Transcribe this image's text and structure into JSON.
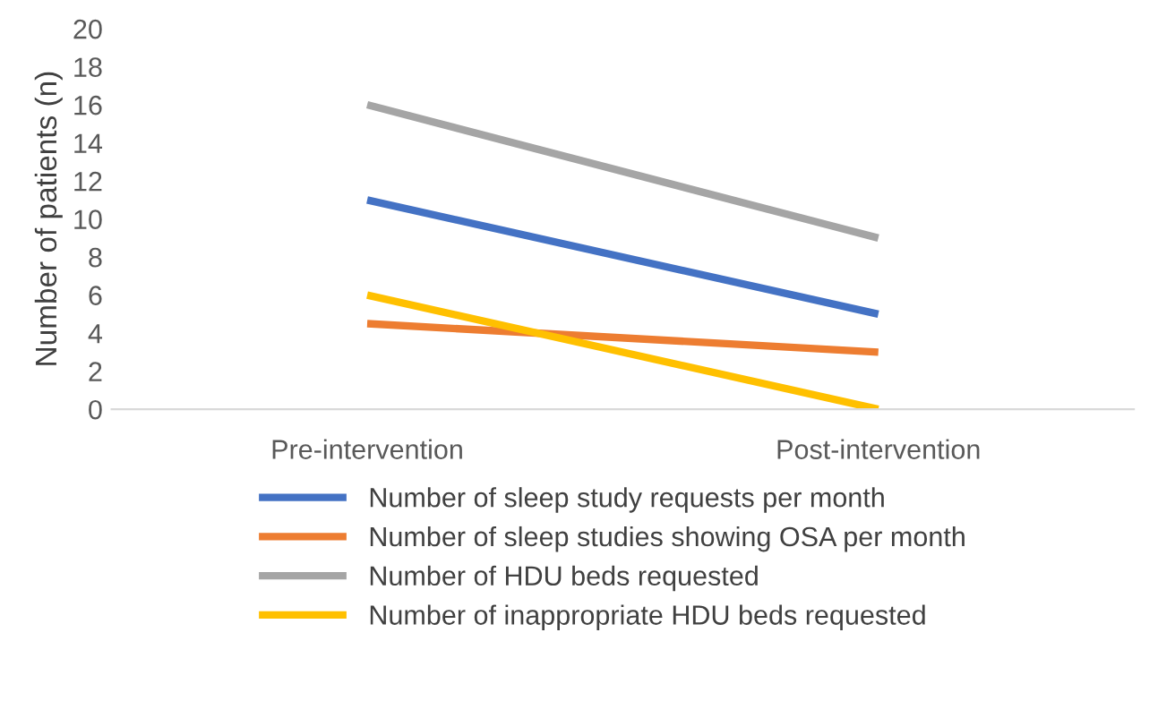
{
  "chart_data": {
    "type": "line",
    "ylabel": "Number of patients (n)",
    "categories": [
      "Pre-intervention",
      "Post-intervention"
    ],
    "series": [
      {
        "name": "Number of sleep study requests per month",
        "color": "#4472c4",
        "values": [
          11,
          5
        ]
      },
      {
        "name": "Number of sleep studies showing OSA per month",
        "color": "#ed7d31",
        "values": [
          4.5,
          3
        ]
      },
      {
        "name": "Number of HDU beds requested",
        "color": "#a5a5a5",
        "values": [
          16,
          9
        ]
      },
      {
        "name": "Number of inappropriate HDU beds requested",
        "color": "#ffc000",
        "values": [
          6,
          0
        ]
      }
    ],
    "ylim": [
      0,
      20
    ],
    "yticks": [
      0,
      2,
      4,
      6,
      8,
      10,
      12,
      14,
      16,
      18,
      20
    ],
    "grid": false,
    "legend": "bottom",
    "marker": "none",
    "line_style": "solid"
  }
}
